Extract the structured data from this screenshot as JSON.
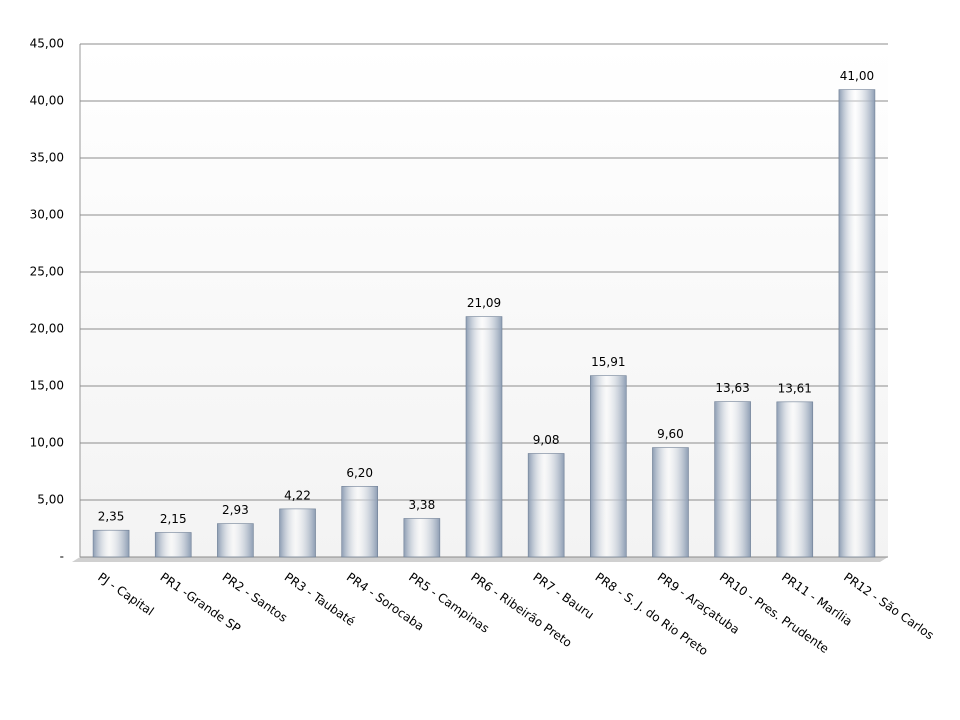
{
  "chart_data": {
    "type": "bar",
    "categories": [
      "PJ - Capital",
      "PR1 -Grande SP",
      "PR2 - Santos",
      "PR3 - Taubaté",
      "PR4 - Sorocaba",
      "PR5 - Campinas",
      "PR6 - Ribeirão Preto",
      "PR7 - Bauru",
      "PR8 - S. J. do Rio Preto",
      "PR9 - Araçatuba",
      "PR10 - Pres. Prudente",
      "PR11 - Marília",
      "PR12 - São Carlos"
    ],
    "values": [
      2.35,
      2.15,
      2.93,
      4.22,
      6.2,
      3.38,
      21.09,
      9.08,
      15.91,
      9.6,
      13.63,
      13.61,
      41.0
    ],
    "value_labels": [
      "2,35",
      "2,15",
      "2,93",
      "4,22",
      "6,20",
      "3,38",
      "21,09",
      "9,08",
      "15,91",
      "9,60",
      "13,63",
      "13,61",
      "41,00"
    ],
    "color": "#8d9db3",
    "ylim": [
      0,
      45
    ],
    "yticks": [
      {
        "value": 0,
        "label": "-"
      },
      {
        "value": 5,
        "label": "5,00"
      },
      {
        "value": 10,
        "label": "10,00"
      },
      {
        "value": 15,
        "label": "15,00"
      },
      {
        "value": 20,
        "label": "20,00"
      },
      {
        "value": 25,
        "label": "25,00"
      },
      {
        "value": 30,
        "label": "30,00"
      },
      {
        "value": 35,
        "label": "35,00"
      },
      {
        "value": 40,
        "label": "40,00"
      },
      {
        "value": 45,
        "label": "45,00"
      }
    ],
    "grid": true
  }
}
